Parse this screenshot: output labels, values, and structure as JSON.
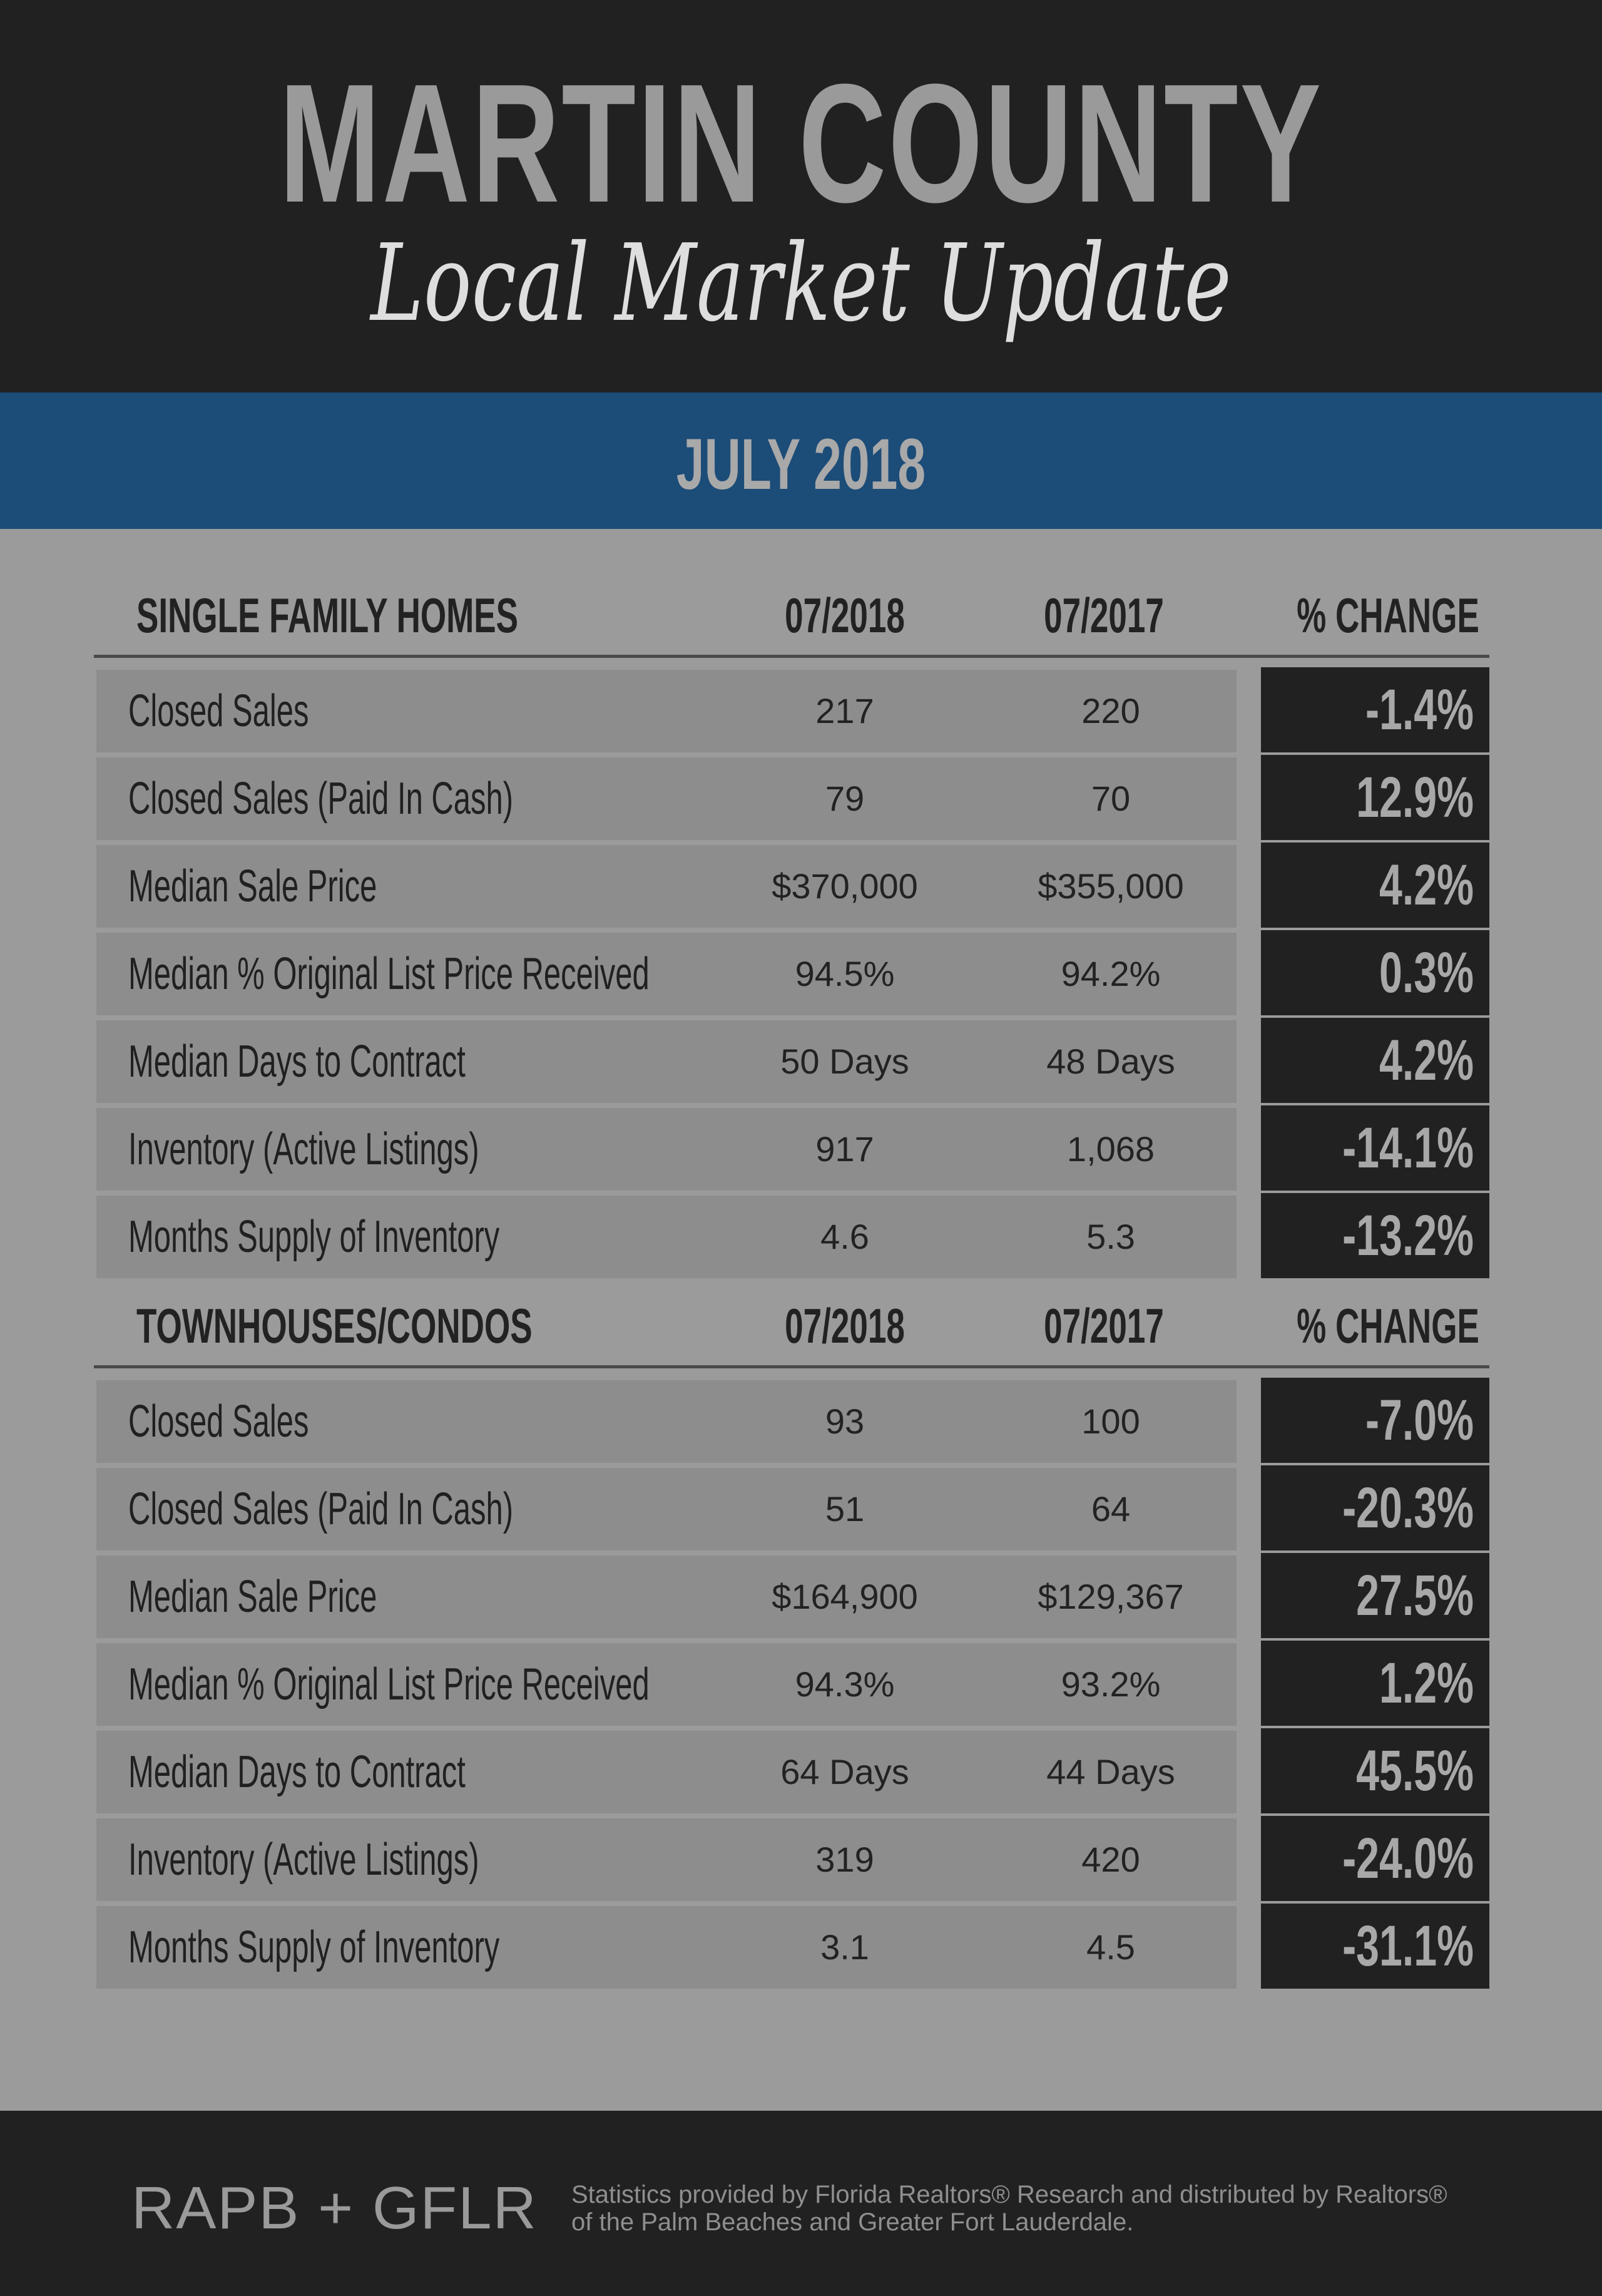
{
  "header": {
    "title": "MARTIN COUNTY",
    "subtitle": "Local Market Update"
  },
  "period": "JULY 2018",
  "sections": [
    {
      "title": "SINGLE FAMILY HOMES",
      "col1": "07/2018",
      "col2": "07/2017",
      "col3": "% CHANGE",
      "rows": [
        {
          "label": "Closed Sales",
          "v2018": "217",
          "v2017": "220",
          "change": "-1.4%"
        },
        {
          "label": "Closed Sales (Paid In Cash)",
          "v2018": "79",
          "v2017": "70",
          "change": "12.9%"
        },
        {
          "label": "Median Sale Price",
          "v2018": "$370,000",
          "v2017": "$355,000",
          "change": "4.2%"
        },
        {
          "label": "Median % Original List Price Received",
          "v2018": "94.5%",
          "v2017": "94.2%",
          "change": "0.3%"
        },
        {
          "label": "Median Days to Contract",
          "v2018": "50 Days",
          "v2017": "48 Days",
          "change": "4.2%"
        },
        {
          "label": "Inventory (Active Listings)",
          "v2018": "917",
          "v2017": "1,068",
          "change": "-14.1%"
        },
        {
          "label": "Months Supply of Inventory",
          "v2018": "4.6",
          "v2017": "5.3",
          "change": "-13.2%"
        }
      ]
    },
    {
      "title": "TOWNHOUSES/CONDOS",
      "col1": "07/2018",
      "col2": "07/2017",
      "col3": "% CHANGE",
      "rows": [
        {
          "label": "Closed Sales",
          "v2018": "93",
          "v2017": "100",
          "change": "-7.0%"
        },
        {
          "label": "Closed Sales (Paid In Cash)",
          "v2018": "51",
          "v2017": "64",
          "change": "-20.3%"
        },
        {
          "label": "Median Sale Price",
          "v2018": "$164,900",
          "v2017": "$129,367",
          "change": "27.5%"
        },
        {
          "label": "Median % Original List Price Received",
          "v2018": "94.3%",
          "v2017": "93.2%",
          "change": "1.2%"
        },
        {
          "label": "Median Days to Contract",
          "v2018": "64 Days",
          "v2017": "44 Days",
          "change": "45.5%"
        },
        {
          "label": "Inventory (Active Listings)",
          "v2018": "319",
          "v2017": "420",
          "change": "-24.0%"
        },
        {
          "label": "Months Supply of Inventory",
          "v2018": "3.1",
          "v2017": "4.5",
          "change": "-31.1%"
        }
      ]
    }
  ],
  "footer": {
    "logo": "RAPB + GFLR",
    "credit": "Statistics provided by Florida Realtors® Research and distributed by Realtors® of the Palm Beaches and Greater Fort Lauderdale."
  },
  "colors": {
    "header_bg": "#212121",
    "band": "#1c4c78",
    "body_bg": "#9b9b9b",
    "row_bg": "#8d8d8d",
    "change_bg": "#212121"
  }
}
